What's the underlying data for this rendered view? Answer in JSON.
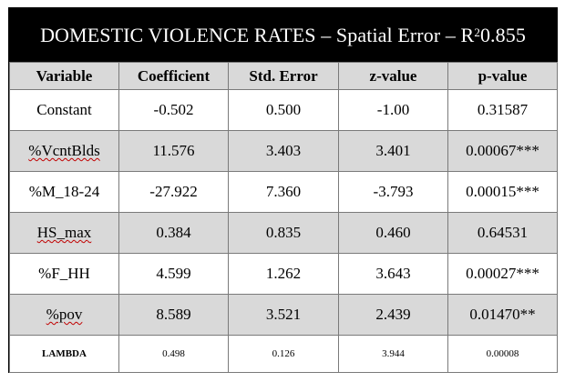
{
  "title": {
    "prefix": "DOMESTIC VIOLENCE RATES – Spatial Error – R",
    "sup": "2",
    "suffix": " 0.855"
  },
  "columns": [
    "Variable",
    "Coefficient",
    "Std. Error",
    "z-value",
    "p-value"
  ],
  "rows": [
    {
      "variable": "Constant",
      "coefficient": "-0.502",
      "std_error": "0.500",
      "z_value": "-1.00",
      "p_value": "0.31587"
    },
    {
      "variable": "%VcntBlds",
      "coefficient": "11.576",
      "std_error": "3.403",
      "z_value": "3.401",
      "p_value": "0.00067***"
    },
    {
      "variable": "%M_18-24",
      "coefficient": "-27.922",
      "std_error": "7.360",
      "z_value": "-3.793",
      "p_value": "0.00015***"
    },
    {
      "variable": "HS_max",
      "coefficient": "0.384",
      "std_error": "0.835",
      "z_value": "0.460",
      "p_value": "0.64531"
    },
    {
      "variable": "%F_HH",
      "coefficient": "4.599",
      "std_error": "1.262",
      "z_value": "3.643",
      "p_value": "0.00027***"
    },
    {
      "variable": "%pov",
      "coefficient": "8.589",
      "std_error": "3.521",
      "z_value": "2.439",
      "p_value": "0.01470**"
    },
    {
      "variable": "LAMBDA",
      "coefficient": "0.498",
      "std_error": "0.126",
      "z_value": "3.944",
      "p_value": "0.00008"
    }
  ],
  "colors": {
    "title_bg": "#000000",
    "shaded_row": "#d9d9d9"
  }
}
